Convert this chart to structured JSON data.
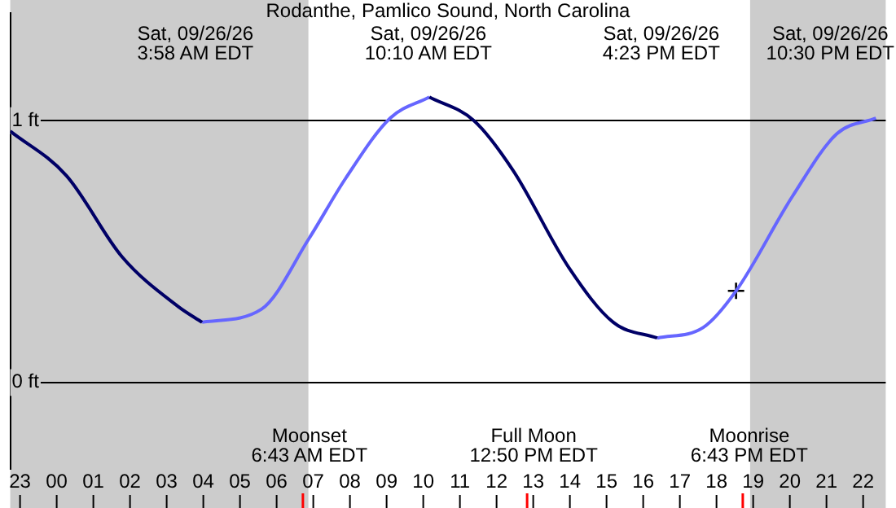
{
  "chart_data": {
    "type": "line",
    "title": "Rodanthe, Pamlico Sound, North Carolina",
    "series": [
      {
        "color": "#000066",
        "x": [
          "--09-25T22:44",
          "--09-26T00:16",
          "--09-26T01:47",
          "--09-26T03:19",
          "--09-26T03:58",
          "--09-26T07:00",
          "--09-26T10:10",
          "--09-26T11:23",
          "--09-26T12:27",
          "--09-26T13:58",
          "--09-26T15:11",
          "--09-26T16:23"
        ],
        "values": [
          0.96,
          0.79,
          0.48,
          0.29,
          0.23,
          null,
          1.09,
          1.0,
          0.81,
          0.44,
          0.23,
          0.17
        ]
      },
      {
        "color": "#6666ff",
        "x": [
          "--09-26T03:58",
          "--09-26T05:35",
          "--09-26T06:53",
          "--09-26T07:53",
          "--09-26T09:06",
          "--09-26T10:10",
          "--09-26T13:00",
          "--09-26T16:23",
          "--09-26T17:38",
          "--09-26T18:32",
          "--09-26T20:04",
          "--09-26T21:17",
          "--09-26T22:21"
        ],
        "values": [
          0.23,
          0.28,
          0.55,
          0.78,
          1.01,
          1.09,
          null,
          0.17,
          0.21,
          0.35,
          0.71,
          0.95,
          1.01
        ]
      },
      {
        "type": "scatter",
        "marker": "cross",
        "color": "#000000",
        "x": [
          "--09-26T18:32"
        ],
        "values": [
          0.35
        ]
      }
    ],
    "xlim": [
      "--09-25T22:44",
      "--09-26T22:37"
    ],
    "ylim": [
      -0.33,
      1.41
    ],
    "xticks": [
      {
        "value": "--09-25T23:00",
        "label": "23"
      },
      {
        "value": "--09-26T00:00",
        "label": "00"
      },
      {
        "value": "--09-26T01:00",
        "label": "01"
      },
      {
        "value": "--09-26T02:00",
        "label": "02"
      },
      {
        "value": "--09-26T03:00",
        "label": "03"
      },
      {
        "value": "--09-26T04:00",
        "label": "04"
      },
      {
        "value": "--09-26T05:00",
        "label": "05"
      },
      {
        "value": "--09-26T06:00",
        "label": "06"
      },
      {
        "value": "--09-26T07:00",
        "label": "07"
      },
      {
        "value": "--09-26T08:00",
        "label": "08"
      },
      {
        "value": "--09-26T09:00",
        "label": "09"
      },
      {
        "value": "--09-26T10:00",
        "label": "10"
      },
      {
        "value": "--09-26T11:00",
        "label": "11"
      },
      {
        "value": "--09-26T12:00",
        "label": "12"
      },
      {
        "value": "--09-26T13:00",
        "label": "13"
      },
      {
        "value": "--09-26T14:00",
        "label": "14"
      },
      {
        "value": "--09-26T15:00",
        "label": "15"
      },
      {
        "value": "--09-26T16:00",
        "label": "16"
      },
      {
        "value": "--09-26T17:00",
        "label": "17"
      },
      {
        "value": "--09-26T18:00",
        "label": "18"
      },
      {
        "value": "--09-26T19:00",
        "label": "19"
      },
      {
        "value": "--09-26T20:00",
        "label": "20"
      },
      {
        "value": "--09-26T21:00",
        "label": "21"
      },
      {
        "value": "--09-26T22:00",
        "label": "22"
      }
    ],
    "yticks": [
      {
        "value": 0,
        "label": "0 ft"
      },
      {
        "value": 1,
        "label": "1 ft"
      }
    ],
    "grid": "y",
    "legend": false,
    "bands": [
      {
        "axis": "x",
        "from": "--09-25T22:44",
        "to": "--09-26T06:52",
        "color": "#cccccc"
      },
      {
        "axis": "x",
        "from": "--09-26T18:55",
        "to": "--09-26T22:37",
        "color": "#cccccc"
      }
    ],
    "ref_lines": [
      {
        "axis": "x",
        "value": "--09-26T06:43",
        "label": "Moonset\n6:43 AM EDT",
        "color": "#ff0000"
      },
      {
        "axis": "x",
        "value": "--09-26T12:50",
        "label": "Full Moon\n12:50 PM EDT",
        "color": "#ff0000"
      },
      {
        "axis": "x",
        "value": "--09-26T18:43",
        "label": "Moonrise\n6:43 PM EDT",
        "color": "#ff0000"
      }
    ],
    "annotations": [
      "Sat, 09/26/26\n3:58 AM EDT",
      "Sat, 09/26/26\n10:10 AM EDT",
      "Sat, 09/26/26\n4:23 PM EDT",
      "Sat, 09/26/26\n10:30 PM EDT"
    ]
  }
}
